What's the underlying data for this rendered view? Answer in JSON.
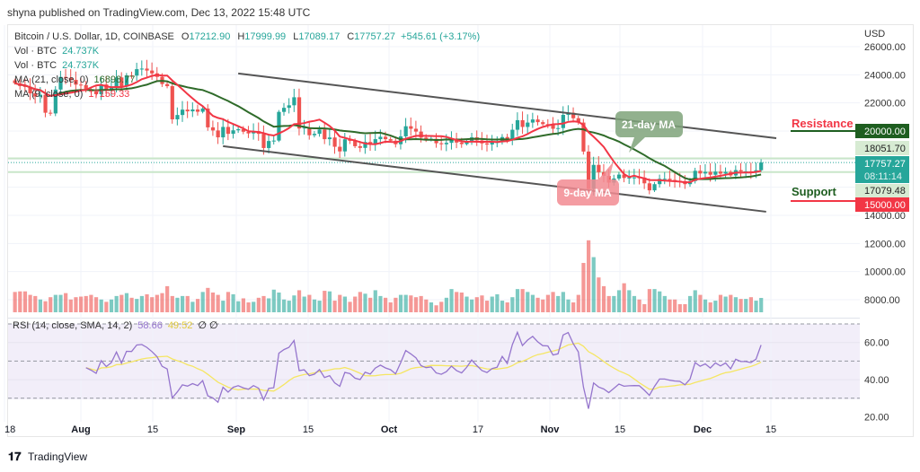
{
  "header": {
    "published": "shyna published on TradingView.com, Dec 13, 2022 15:48 UTC"
  },
  "legend": {
    "symbol": "Bitcoin / U.S. Dollar, 1D, COINBASE",
    "open_label": "O",
    "open": "17212.90",
    "high_label": "H",
    "high": "17999.99",
    "low_label": "L",
    "low": "17089.17",
    "close_label": "C",
    "close": "17757.27",
    "change": "+545.61 (+3.17%)",
    "vol1_label": "Vol · BTC",
    "vol1_value": "24.737K",
    "vol2_label": "Vol · BTC",
    "vol2_value": "24.737K",
    "ma21_label": "MA (21, close, 0)",
    "ma21_value": "16898.77",
    "ma9_label": "MA (9, close, 0)",
    "ma9_value": "17159.33"
  },
  "rsi_legend": {
    "label": "RSI (14, close, SMA, 14, 2)",
    "rsi_value": "58.66",
    "sma_value": "49.52",
    "flags": "∅ ∅"
  },
  "price_axis": {
    "currency": "USD",
    "ticks": [
      "26000.00",
      "24000.00",
      "22000.00",
      "12000.00",
      "10000.00",
      "8000.00"
    ],
    "tick_values": [
      26000,
      24000,
      22000,
      12000,
      10000,
      8000
    ],
    "bottom_tick": "14000.00",
    "labels": {
      "resistance_price": "20000.00",
      "high_line": "18051.70",
      "last_price": "17757.27",
      "countdown": "08:11:14",
      "low_line": "17079.48",
      "support_price": "15000.00"
    }
  },
  "rsi_axis": {
    "ticks": [
      "60.00",
      "40.00",
      "20.00"
    ],
    "tick_values": [
      60,
      40,
      20
    ]
  },
  "time_axis": {
    "labels": [
      "18",
      "Aug",
      "15",
      "Sep",
      "15",
      "Oct",
      "17",
      "Nov",
      "15",
      "Dec",
      "15"
    ]
  },
  "annotations": {
    "resistance": "Resistance",
    "support": "Support",
    "ma21_callout": "21-day MA",
    "ma9_callout": "9-day MA"
  },
  "colors": {
    "up": "#26a69a",
    "down": "#ef5350",
    "ma21": "#2f6b2a",
    "ma9": "#f23645",
    "rsi": "#9575cd",
    "rsi_sma": "#f5e663",
    "resistance": "#1e5e20",
    "support": "#f23645"
  },
  "chart_data": {
    "type": "candlestick",
    "title": "Bitcoin / U.S. Dollar, 1D, COINBASE",
    "ylim": [
      7000,
      26500
    ],
    "grid": true,
    "last_candle": {
      "open": 17212.9,
      "high": 17999.99,
      "low": 17089.17,
      "close": 17757.27
    },
    "months": [
      {
        "month": "Jul",
        "start_day": 19,
        "close": [
          23400,
          23200,
          23150,
          22680,
          22450,
          22580,
          21300,
          21250,
          22950,
          23850,
          23780,
          23640,
          23300
        ],
        "volume_k": [
          35,
          36,
          36,
          30,
          28,
          22,
          19,
          26,
          30,
          30,
          33,
          22,
          26
        ]
      },
      {
        "month": "Aug",
        "start_day": 1,
        "close": [
          23270,
          22980,
          22820,
          22620,
          23310,
          22950,
          23170,
          23810,
          23160,
          23950,
          23940,
          24400,
          24440,
          24300,
          24100,
          23850,
          23340,
          23190,
          20830,
          21140,
          21520,
          21400,
          21530,
          21370,
          21600,
          20260,
          20040,
          19550,
          20290,
          19800,
          20050
        ],
        "volume_k": [
          27,
          28,
          30,
          26,
          22,
          18,
          22,
          28,
          30,
          33,
          25,
          23,
          28,
          31,
          26,
          30,
          33,
          45,
          28,
          25,
          28,
          28,
          18,
          23,
          35,
          42,
          34,
          30,
          20,
          35,
          31
        ]
      },
      {
        "month": "Sep",
        "start_day": 1,
        "close": [
          20130,
          19950,
          19830,
          19990,
          19800,
          18790,
          19290,
          19320,
          21360,
          21650,
          21830,
          22400,
          20180,
          20240,
          19700,
          19800,
          20110,
          19420,
          19540,
          18880,
          18550,
          19410,
          19300,
          18920,
          18800,
          19220,
          19080,
          19420,
          19590,
          19420
        ],
        "volume_k": [
          19,
          24,
          17,
          18,
          25,
          28,
          24,
          39,
          34,
          22,
          20,
          29,
          38,
          27,
          30,
          22,
          20,
          37,
          36,
          20,
          30,
          27,
          18,
          27,
          35,
          32,
          25,
          38,
          28,
          25
        ]
      },
      {
        "month": "Oct",
        "start_day": 1,
        "close": [
          19310,
          19060,
          19620,
          20340,
          20160,
          19960,
          19530,
          19420,
          19450,
          19130,
          19060,
          19160,
          19380,
          19180,
          19070,
          19270,
          19550,
          19330,
          19120,
          19040,
          19170,
          19210,
          19570,
          19330,
          20090,
          20770,
          20290,
          20600,
          20820,
          20630,
          20490
        ],
        "volume_k": [
          17,
          25,
          30,
          30,
          29,
          26,
          28,
          22,
          17,
          12,
          18,
          25,
          40,
          35,
          34,
          27,
          22,
          26,
          29,
          20,
          27,
          31,
          20,
          17,
          26,
          40,
          40,
          35,
          30,
          25,
          22
        ]
      },
      {
        "month": "Nov",
        "start_day": 1,
        "close": [
          20480,
          20160,
          20210,
          21150,
          21300,
          20910,
          20600,
          18540,
          15880,
          17590,
          17070,
          16810,
          16330,
          16620,
          16900,
          16660,
          16690,
          16700,
          16690,
          16280,
          15780,
          16220,
          16600,
          16600,
          16520,
          16460,
          16440,
          16220,
          16440,
          17170
        ],
        "volume_k": [
          30,
          35,
          28,
          35,
          22,
          17,
          30,
          85,
          124,
          95,
          60,
          45,
          28,
          28,
          38,
          50,
          38,
          28,
          22,
          14,
          40,
          40,
          36,
          28,
          22,
          22,
          14,
          14,
          28,
          38
        ]
      },
      {
        "month": "Dec",
        "start_day": 1,
        "close": [
          16980,
          17090,
          16890,
          17110,
          16970,
          17090,
          16840,
          17220,
          17130,
          17130,
          17090,
          17210,
          17757.27
        ],
        "volume_k": [
          30,
          22,
          17,
          20,
          30,
          27,
          30,
          26,
          23,
          23,
          26,
          20,
          24.737
        ]
      }
    ],
    "trend_lines": [
      {
        "name": "channel-upper",
        "from": {
          "date": "Sep 1",
          "price": 24090
        },
        "to": {
          "date": "Dec 16",
          "price": 19490
        }
      },
      {
        "name": "channel-lower",
        "from": {
          "date": "Aug 29",
          "price": 18920
        },
        "to": {
          "date": "Dec 14",
          "price": 14260
        }
      }
    ],
    "horizontal_levels": {
      "resistance": 20000,
      "support": 15000,
      "high": 18051.7,
      "low": 17079.48,
      "last": 17757.27
    },
    "rsi": {
      "length": 14,
      "sma_length": 14,
      "bands": [
        70,
        50,
        30
      ],
      "ylim": [
        20,
        70
      ]
    }
  }
}
